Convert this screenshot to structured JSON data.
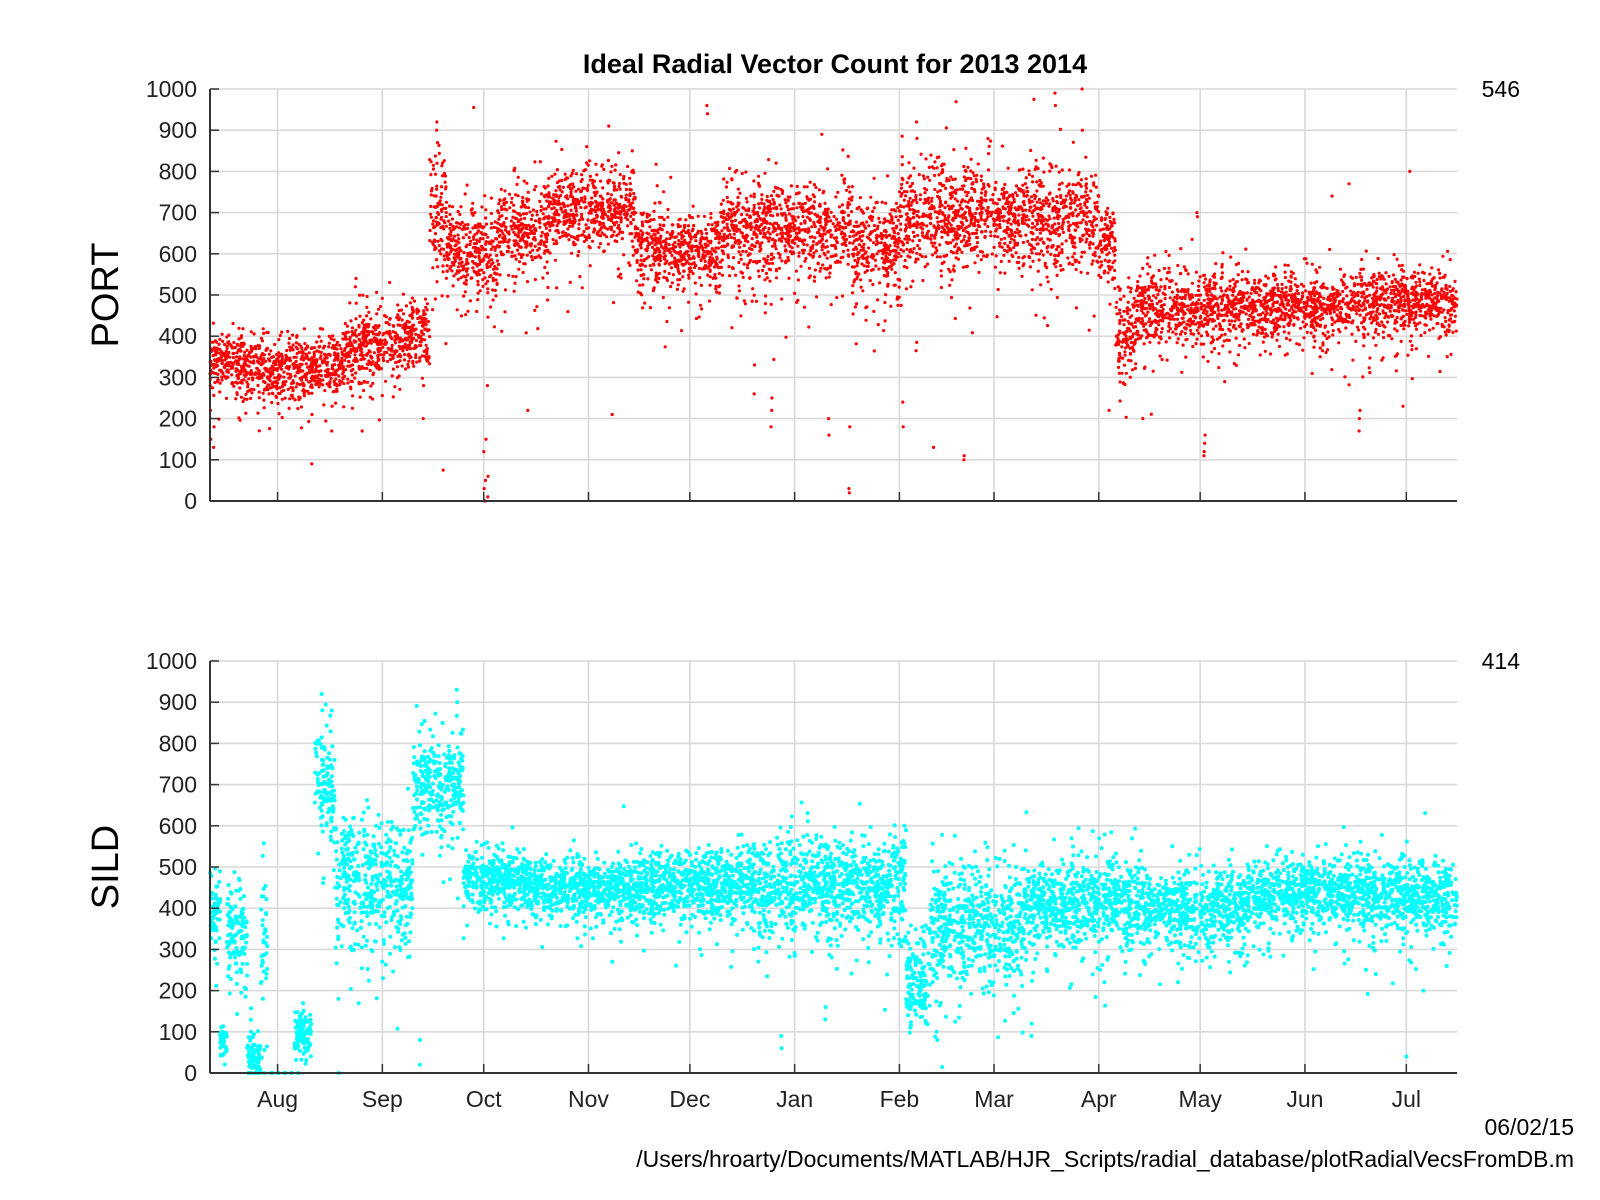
{
  "figure": {
    "title": "Ideal Radial Vector Count for 2013  2014",
    "footer_date": "06/02/15",
    "footer_path": "/Users/hroarty/Documents/MATLAB/HJR_Scripts/radial_database/plotRadialVecsFromDB.m"
  },
  "chart_data": [
    {
      "type": "scatter",
      "ylabel": "PORT",
      "count_label": "546",
      "color": "#ff0000",
      "ylim": [
        0,
        1000
      ],
      "yticks": [
        0,
        100,
        200,
        300,
        400,
        500,
        600,
        700,
        800,
        900,
        1000
      ],
      "xlim": [
        "2013-07-12",
        "2014-07-16"
      ],
      "x_tick_dates": [
        "2013-08-01",
        "2013-09-01",
        "2013-10-01",
        "2013-11-01",
        "2013-12-01",
        "2014-01-01",
        "2014-02-01",
        "2014-03-01",
        "2014-04-01",
        "2014-05-01",
        "2014-06-01",
        "2014-07-01"
      ],
      "x_tick_labels": [],
      "grid": true,
      "segments": [
        {
          "start": "2013-07-12",
          "end": "2013-07-26",
          "mean": 335,
          "spread": 35
        },
        {
          "start": "2013-07-26",
          "end": "2013-08-09",
          "mean": 325,
          "spread": 38
        },
        {
          "start": "2013-08-09",
          "end": "2013-08-21",
          "mean": 330,
          "spread": 35
        },
        {
          "start": "2013-08-21",
          "end": "2013-09-05",
          "mean": 380,
          "spread": 40
        },
        {
          "start": "2013-09-05",
          "end": "2013-09-15",
          "mean": 400,
          "spread": 40
        },
        {
          "start": "2013-09-15",
          "end": "2013-09-20",
          "mean": 700,
          "spread": 80
        },
        {
          "start": "2013-09-20",
          "end": "2013-10-05",
          "mean": 600,
          "spread": 50
        },
        {
          "start": "2013-10-05",
          "end": "2013-10-20",
          "mean": 660,
          "spread": 55
        },
        {
          "start": "2013-10-20",
          "end": "2013-11-15",
          "mean": 705,
          "spread": 50
        },
        {
          "start": "2013-11-15",
          "end": "2013-12-10",
          "mean": 610,
          "spread": 45
        },
        {
          "start": "2013-12-10",
          "end": "2014-01-18",
          "mean": 660,
          "spread": 55
        },
        {
          "start": "2014-01-18",
          "end": "2014-02-01",
          "mean": 620,
          "spread": 60
        },
        {
          "start": "2014-02-01",
          "end": "2014-03-01",
          "mean": 690,
          "spread": 65
        },
        {
          "start": "2014-03-01",
          "end": "2014-04-01",
          "mean": 690,
          "spread": 60
        },
        {
          "start": "2014-04-01",
          "end": "2014-04-06",
          "mean": 620,
          "spread": 45
        },
        {
          "start": "2014-04-06",
          "end": "2014-04-12",
          "mean": 410,
          "spread": 55
        },
        {
          "start": "2014-04-12",
          "end": "2014-05-10",
          "mean": 470,
          "spread": 45
        },
        {
          "start": "2014-05-10",
          "end": "2014-06-15",
          "mean": 475,
          "spread": 40
        },
        {
          "start": "2014-06-15",
          "end": "2014-07-16",
          "mean": 485,
          "spread": 40
        }
      ],
      "spikes": [
        {
          "date": "2013-07-12",
          "values": [
            280,
            220,
            150
          ]
        },
        {
          "date": "2013-07-13",
          "values": [
            130,
            180
          ]
        },
        {
          "date": "2013-08-11",
          "values": [
            90,
            210
          ]
        },
        {
          "date": "2013-08-17",
          "values": [
            170,
            230
          ]
        },
        {
          "date": "2013-08-24",
          "values": [
            520,
            540,
            480
          ]
        },
        {
          "date": "2013-08-26",
          "values": [
            170
          ]
        },
        {
          "date": "2013-09-13",
          "values": [
            200,
            280
          ]
        },
        {
          "date": "2013-09-17",
          "values": [
            900,
            920,
            870
          ]
        },
        {
          "date": "2013-09-19",
          "values": [
            75
          ]
        },
        {
          "date": "2013-09-28",
          "values": [
            955
          ]
        },
        {
          "date": "2013-10-01",
          "values": [
            120,
            30,
            0,
            0,
            50,
            150
          ]
        },
        {
          "date": "2013-10-02",
          "values": [
            280,
            10,
            60
          ]
        },
        {
          "date": "2013-10-14",
          "values": [
            220
          ]
        },
        {
          "date": "2013-11-07",
          "values": [
            910
          ]
        },
        {
          "date": "2013-11-08",
          "values": [
            210
          ]
        },
        {
          "date": "2013-12-06",
          "values": [
            960,
            940
          ]
        },
        {
          "date": "2013-12-20",
          "values": [
            260,
            330
          ]
        },
        {
          "date": "2013-12-25",
          "values": [
            180,
            220,
            250
          ]
        },
        {
          "date": "2014-01-09",
          "values": [
            890
          ]
        },
        {
          "date": "2014-01-11",
          "values": [
            200,
            160
          ]
        },
        {
          "date": "2014-01-17",
          "values": [
            30,
            20,
            180
          ]
        },
        {
          "date": "2014-02-02",
          "values": [
            240,
            180
          ]
        },
        {
          "date": "2014-02-06",
          "values": [
            920,
            880
          ]
        },
        {
          "date": "2014-02-11",
          "values": [
            130
          ]
        },
        {
          "date": "2014-02-20",
          "values": [
            100,
            110
          ]
        },
        {
          "date": "2014-03-19",
          "values": [
            990,
            960
          ]
        },
        {
          "date": "2014-03-27",
          "values": [
            1000,
            900
          ]
        },
        {
          "date": "2014-04-04",
          "values": [
            220
          ]
        },
        {
          "date": "2014-04-14",
          "values": [
            200
          ]
        },
        {
          "date": "2014-04-30",
          "values": [
            700,
            690
          ]
        },
        {
          "date": "2014-05-02",
          "values": [
            110,
            120,
            140,
            160
          ]
        },
        {
          "date": "2014-06-09",
          "values": [
            740
          ]
        },
        {
          "date": "2014-06-14",
          "values": [
            770
          ]
        },
        {
          "date": "2014-06-17",
          "values": [
            170,
            200,
            220
          ]
        },
        {
          "date": "2014-06-30",
          "values": [
            230
          ]
        },
        {
          "date": "2014-07-02",
          "values": [
            800
          ]
        }
      ]
    },
    {
      "type": "scatter",
      "ylabel": "SILD",
      "count_label": "414",
      "color": "#00ffff",
      "ylim": [
        0,
        1000
      ],
      "yticks": [
        0,
        100,
        200,
        300,
        400,
        500,
        600,
        700,
        800,
        900,
        1000
      ],
      "xlim": [
        "2013-07-12",
        "2014-07-16"
      ],
      "x_tick_dates": [
        "2013-08-01",
        "2013-09-01",
        "2013-10-01",
        "2013-11-01",
        "2013-12-01",
        "2014-01-01",
        "2014-02-01",
        "2014-03-01",
        "2014-04-01",
        "2014-05-01",
        "2014-06-01",
        "2014-07-01"
      ],
      "x_tick_labels": [
        "Aug",
        "Sep",
        "Oct",
        "Nov",
        "Dec",
        "Jan",
        "Feb",
        "Mar",
        "Apr",
        "May",
        "Jun",
        "Jul"
      ],
      "grid": true,
      "segments": [
        {
          "start": "2013-07-12",
          "end": "2013-07-15",
          "mean": 400,
          "spread": 40
        },
        {
          "start": "2013-07-15",
          "end": "2013-07-17",
          "mean": 80,
          "spread": 25
        },
        {
          "start": "2013-07-17",
          "end": "2013-07-23",
          "mean": 330,
          "spread": 60
        },
        {
          "start": "2013-07-23",
          "end": "2013-07-27",
          "mean": 40,
          "spread": 30
        },
        {
          "start": "2013-07-27",
          "end": "2013-07-29",
          "mean": 300,
          "spread": 80
        },
        {
          "start": "2013-08-06",
          "end": "2013-08-11",
          "mean": 90,
          "spread": 30
        },
        {
          "start": "2013-08-12",
          "end": "2013-08-18",
          "mean": 700,
          "spread": 70
        },
        {
          "start": "2013-08-18",
          "end": "2013-09-01",
          "mean": 470,
          "spread": 80
        },
        {
          "start": "2013-09-01",
          "end": "2013-09-10",
          "mean": 450,
          "spread": 80
        },
        {
          "start": "2013-09-10",
          "end": "2013-09-25",
          "mean": 705,
          "spread": 60
        },
        {
          "start": "2013-09-25",
          "end": "2013-10-15",
          "mean": 470,
          "spread": 35
        },
        {
          "start": "2013-10-15",
          "end": "2013-11-15",
          "mean": 450,
          "spread": 35
        },
        {
          "start": "2013-11-15",
          "end": "2013-12-20",
          "mean": 460,
          "spread": 40
        },
        {
          "start": "2013-12-20",
          "end": "2014-01-20",
          "mean": 460,
          "spread": 55
        },
        {
          "start": "2014-01-20",
          "end": "2014-02-03",
          "mean": 450,
          "spread": 60
        },
        {
          "start": "2014-02-03",
          "end": "2014-02-10",
          "mean": 230,
          "spread": 60
        },
        {
          "start": "2014-02-10",
          "end": "2014-03-10",
          "mean": 360,
          "spread": 70
        },
        {
          "start": "2014-03-10",
          "end": "2014-04-15",
          "mean": 410,
          "spread": 55
        },
        {
          "start": "2014-04-15",
          "end": "2014-05-15",
          "mean": 400,
          "spread": 45
        },
        {
          "start": "2014-05-15",
          "end": "2014-06-15",
          "mean": 440,
          "spread": 40
        },
        {
          "start": "2014-06-15",
          "end": "2014-07-16",
          "mean": 430,
          "spread": 45
        }
      ],
      "spikes": [
        {
          "date": "2013-07-30",
          "values": [
            0,
            0,
            0,
            0,
            0
          ]
        },
        {
          "date": "2013-08-01",
          "values": [
            0,
            0,
            0,
            0
          ]
        },
        {
          "date": "2013-08-03",
          "values": [
            0,
            0,
            0,
            0
          ]
        },
        {
          "date": "2013-08-05",
          "values": [
            0,
            0,
            0
          ]
        },
        {
          "date": "2013-08-07",
          "values": [
            0,
            0
          ]
        },
        {
          "date": "2013-08-19",
          "values": [
            0
          ]
        },
        {
          "date": "2013-08-14",
          "values": [
            920,
            880
          ]
        },
        {
          "date": "2013-09-12",
          "values": [
            20,
            80
          ]
        },
        {
          "date": "2013-09-23",
          "values": [
            930,
            900
          ]
        },
        {
          "date": "2013-11-08",
          "values": [
            270
          ]
        },
        {
          "date": "2013-12-28",
          "values": [
            90,
            60
          ]
        },
        {
          "date": "2014-01-10",
          "values": [
            130,
            160
          ]
        },
        {
          "date": "2014-02-12",
          "values": [
            100,
            80
          ]
        },
        {
          "date": "2014-03-12",
          "values": [
            90,
            120
          ]
        },
        {
          "date": "2014-04-01",
          "values": [
            570
          ]
        },
        {
          "date": "2014-07-01",
          "values": [
            40
          ]
        },
        {
          "date": "2014-07-06",
          "values": [
            200
          ]
        }
      ]
    }
  ]
}
